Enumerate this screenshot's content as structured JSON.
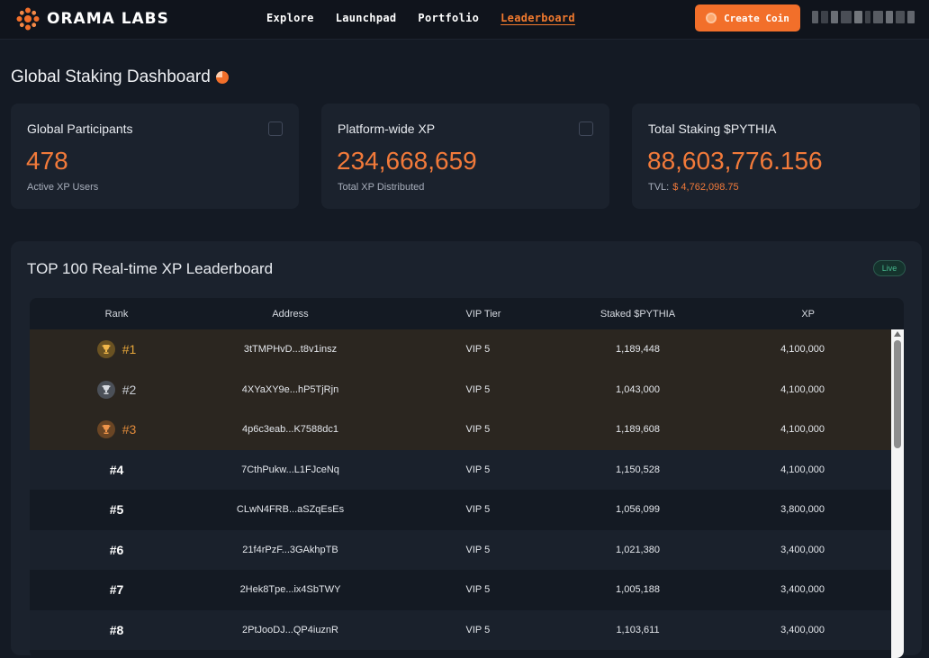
{
  "header": {
    "logo_text": "ORAMA LABS",
    "nav": [
      {
        "label": "Explore",
        "active": false
      },
      {
        "label": "Launchpad",
        "active": false
      },
      {
        "label": "Portfolio",
        "active": false
      },
      {
        "label": "Leaderboard",
        "active": true
      }
    ],
    "create_button": "Create Coin",
    "accent_color": "#f26f2a"
  },
  "page": {
    "title": "Global Staking Dashboard"
  },
  "stats": [
    {
      "label": "Global Participants",
      "value": "478",
      "sub": "Active XP Users",
      "icon": "users-icon"
    },
    {
      "label": "Platform-wide XP",
      "value": "234,668,659",
      "sub": "Total XP Distributed",
      "icon": "chart-icon"
    },
    {
      "label": "Total Staking $PYTHIA",
      "value": "88,603,776.156",
      "sub_label": "TVL:",
      "sub_value": "$ 4,762,098.75"
    }
  ],
  "leaderboard": {
    "title": "TOP 100 Real-time XP Leaderboard",
    "badge": "Live",
    "columns": [
      "Rank",
      "Address",
      "VIP Tier",
      "Staked $PYTHIA",
      "XP"
    ],
    "rows": [
      {
        "rank": "#1",
        "address": "3tTMPHvD...t8v1insz",
        "vip": "VIP 5",
        "staked": "1,189,448",
        "xp": "4,100,000",
        "medal": "gold"
      },
      {
        "rank": "#2",
        "address": "4XYaXY9e...hP5TjRjn",
        "vip": "VIP 5",
        "staked": "1,043,000",
        "xp": "4,100,000",
        "medal": "silver"
      },
      {
        "rank": "#3",
        "address": "4p6c3eab...K7588dc1",
        "vip": "VIP 5",
        "staked": "1,189,608",
        "xp": "4,100,000",
        "medal": "bronze"
      },
      {
        "rank": "#4",
        "address": "7CthPukw...L1FJceNq",
        "vip": "VIP 5",
        "staked": "1,150,528",
        "xp": "4,100,000"
      },
      {
        "rank": "#5",
        "address": "CLwN4FRB...aSZqEsEs",
        "vip": "VIP 5",
        "staked": "1,056,099",
        "xp": "3,800,000"
      },
      {
        "rank": "#6",
        "address": "21f4rPzF...3GAkhpTB",
        "vip": "VIP 5",
        "staked": "1,021,380",
        "xp": "3,400,000"
      },
      {
        "rank": "#7",
        "address": "2Hek8Tpe...ix4SbTWY",
        "vip": "VIP 5",
        "staked": "1,005,188",
        "xp": "3,400,000"
      },
      {
        "rank": "#8",
        "address": "2PtJooDJ...QP4iuznR",
        "vip": "VIP 5",
        "staked": "1,103,611",
        "xp": "3,400,000"
      }
    ]
  }
}
